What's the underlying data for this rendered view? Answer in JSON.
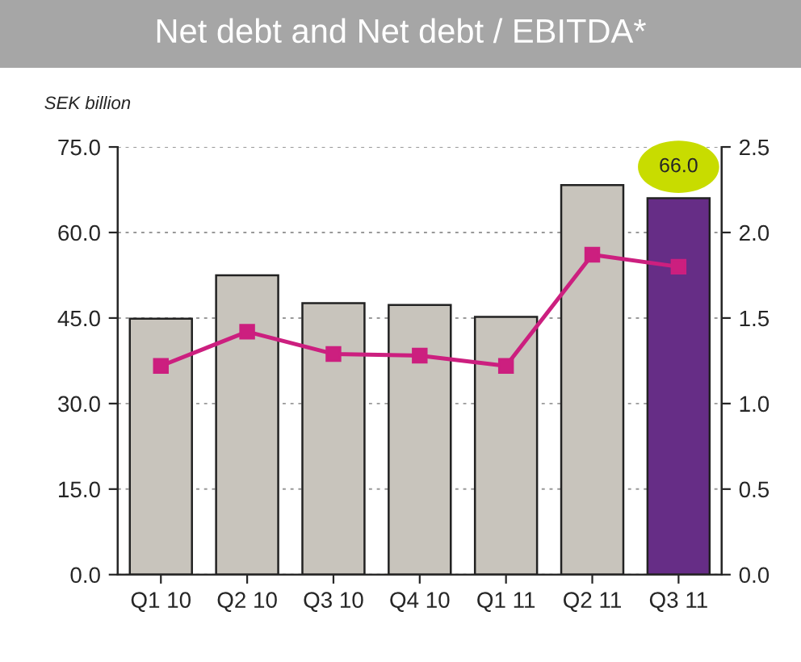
{
  "chart_data": {
    "type": "bar",
    "title": "Net debt and Net debt / EBITDA*",
    "ylabel": "SEK billion",
    "categories": [
      "Q1 10",
      "Q2 10",
      "Q3 10",
      "Q4 10",
      "Q1 11",
      "Q2 11",
      "Q3 11"
    ],
    "series": [
      {
        "colors": [
          "#c8c4bc",
          "#c8c4bc",
          "#c8c4bc",
          "#c8c4bc",
          "#c8c4bc",
          "#c8c4bc",
          "#662d86"
        ],
        "values": [
          44.9,
          52.5,
          47.6,
          47.3,
          45.2,
          68.3,
          66.0
        ],
        "value_labels": [
          null,
          null,
          null,
          null,
          null,
          null,
          "66.0"
        ]
      },
      {
        "type": "line",
        "axis": "y2",
        "color": "#cc1f7f",
        "values": [
          1.22,
          1.42,
          1.29,
          1.28,
          1.22,
          1.87,
          1.8
        ]
      }
    ],
    "ylim": [
      0,
      75
    ],
    "yticks": [
      {
        "value": 0,
        "label": "0.0"
      },
      {
        "value": 15,
        "label": "15.0"
      },
      {
        "value": 30,
        "label": "30.0"
      },
      {
        "value": 45,
        "label": "45.0"
      },
      {
        "value": 60,
        "label": "60.0"
      },
      {
        "value": 75,
        "label": "75.0"
      }
    ],
    "y2lim": [
      0,
      2.5
    ],
    "y2ticks": [
      {
        "value": 0,
        "label": "0.0"
      },
      {
        "value": 0.5,
        "label": "0.5"
      },
      {
        "value": 1.0,
        "label": "1.0"
      },
      {
        "value": 1.5,
        "label": "1.5"
      },
      {
        "value": 2.0,
        "label": "2.0"
      },
      {
        "value": 2.5,
        "label": "2.5"
      }
    ],
    "grid": "y",
    "marker": "square",
    "line_style": "solid"
  }
}
